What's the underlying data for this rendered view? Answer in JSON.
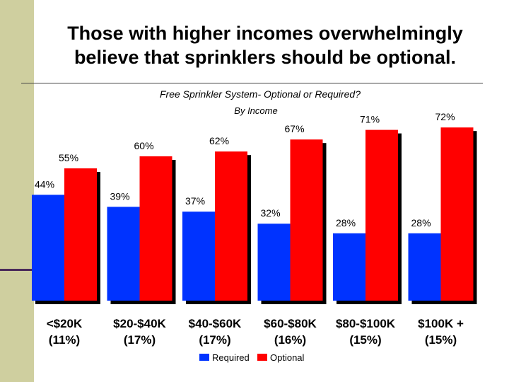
{
  "slide": {
    "title_line1": "Those with higher incomes overwhelmingly",
    "title_line2": "believe that sprinklers should be optional."
  },
  "chart_data": {
    "type": "bar",
    "title": "Free Sprinkler System- Optional or Required?",
    "subtitle": "By Income",
    "categories": [
      [
        "<$20K",
        "(11%)"
      ],
      [
        "$20-$40K",
        "(17%)"
      ],
      [
        "$40-$60K",
        "(17%)"
      ],
      [
        "$60-$80K",
        "(16%)"
      ],
      [
        "$80-$100K",
        "(15%)"
      ],
      [
        "$100K +",
        "(15%)"
      ]
    ],
    "series": [
      {
        "name": "Required",
        "color": "#0033ff",
        "values": [
          44,
          39,
          37,
          32,
          28,
          28
        ],
        "labels": [
          "44%",
          "39%",
          "37%",
          "32%",
          "28%",
          "28%"
        ]
      },
      {
        "name": "Optional",
        "color": "#ff0000",
        "values": [
          55,
          60,
          62,
          67,
          71,
          72
        ],
        "labels": [
          "55%",
          "60%",
          "62%",
          "67%",
          "71%",
          "72%"
        ]
      }
    ],
    "ylim": [
      0,
      100
    ],
    "grid": false,
    "legend": "bottom-center"
  }
}
